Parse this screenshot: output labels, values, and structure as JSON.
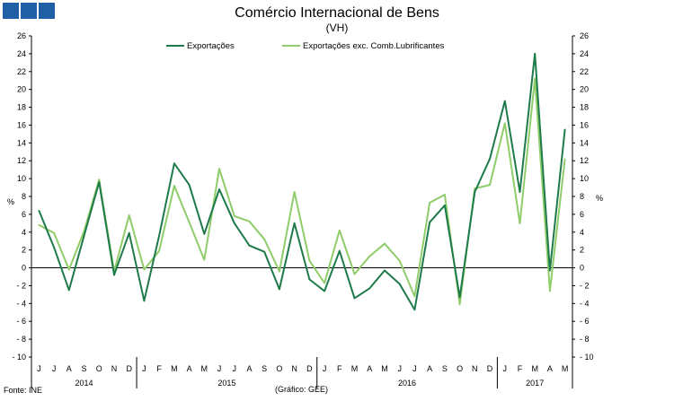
{
  "header": {
    "title": "Comércio Internacional de Bens",
    "subtitle": "(VH)"
  },
  "footer": {
    "source": "Fonte: INE",
    "credit": "(Gráfico: GEE)"
  },
  "colors": {
    "logo": "#1f5fa5",
    "series_1": "#1e7a4a",
    "series_2": "#8fcc6a",
    "axis": "#000000"
  },
  "chart_data": {
    "type": "line",
    "title": "Comércio Internacional de Bens",
    "subtitle": "(VH)",
    "ylabel_left": "%",
    "ylabel_right": "%",
    "ylim": [
      -10,
      26
    ],
    "yticks": [
      -10,
      -8,
      -6,
      -4,
      -2,
      0,
      2,
      4,
      6,
      8,
      10,
      12,
      14,
      16,
      18,
      20,
      22,
      24,
      26
    ],
    "grid": false,
    "legend_position": "top-center",
    "x": [
      "J",
      "J",
      "A",
      "S",
      "O",
      "N",
      "D",
      "J",
      "F",
      "M",
      "A",
      "M",
      "J",
      "J",
      "A",
      "S",
      "O",
      "N",
      "D",
      "J",
      "F",
      "M",
      "A",
      "M",
      "J",
      "J",
      "A",
      "S",
      "O",
      "N",
      "D",
      "J",
      "F",
      "M",
      "A",
      "M"
    ],
    "years": [
      {
        "label": "2014",
        "start": 0,
        "end": 6
      },
      {
        "label": "2015",
        "start": 7,
        "end": 18
      },
      {
        "label": "2016",
        "start": 19,
        "end": 30
      },
      {
        "label": "2017",
        "start": 31,
        "end": 35
      }
    ],
    "series": [
      {
        "name": "Exportações",
        "values": [
          6.4,
          2.3,
          -2.5,
          3.6,
          9.6,
          -0.8,
          3.9,
          -3.7,
          3.6,
          11.7,
          9.3,
          3.8,
          8.8,
          5.0,
          2.5,
          1.8,
          -2.4,
          5.0,
          -1.3,
          -2.6,
          1.9,
          -3.4,
          -2.3,
          -0.3,
          -1.8,
          -4.7,
          5.1,
          7.0,
          -3.3,
          8.5,
          12.2,
          18.7,
          8.5,
          24.0,
          -0.3,
          15.5
        ]
      },
      {
        "name": "Exportações exc. Comb.Lubrificantes",
        "values": [
          4.8,
          3.9,
          -0.2,
          4.1,
          9.9,
          -0.4,
          5.9,
          -0.2,
          1.9,
          9.2,
          5.1,
          0.9,
          11.1,
          5.8,
          5.2,
          3.2,
          -0.4,
          8.5,
          0.8,
          -1.7,
          4.2,
          -0.7,
          1.3,
          2.7,
          0.8,
          -3.2,
          7.3,
          8.2,
          -4.1,
          8.9,
          9.3,
          16.2,
          5.0,
          21.2,
          -2.6,
          12.2
        ]
      }
    ]
  }
}
